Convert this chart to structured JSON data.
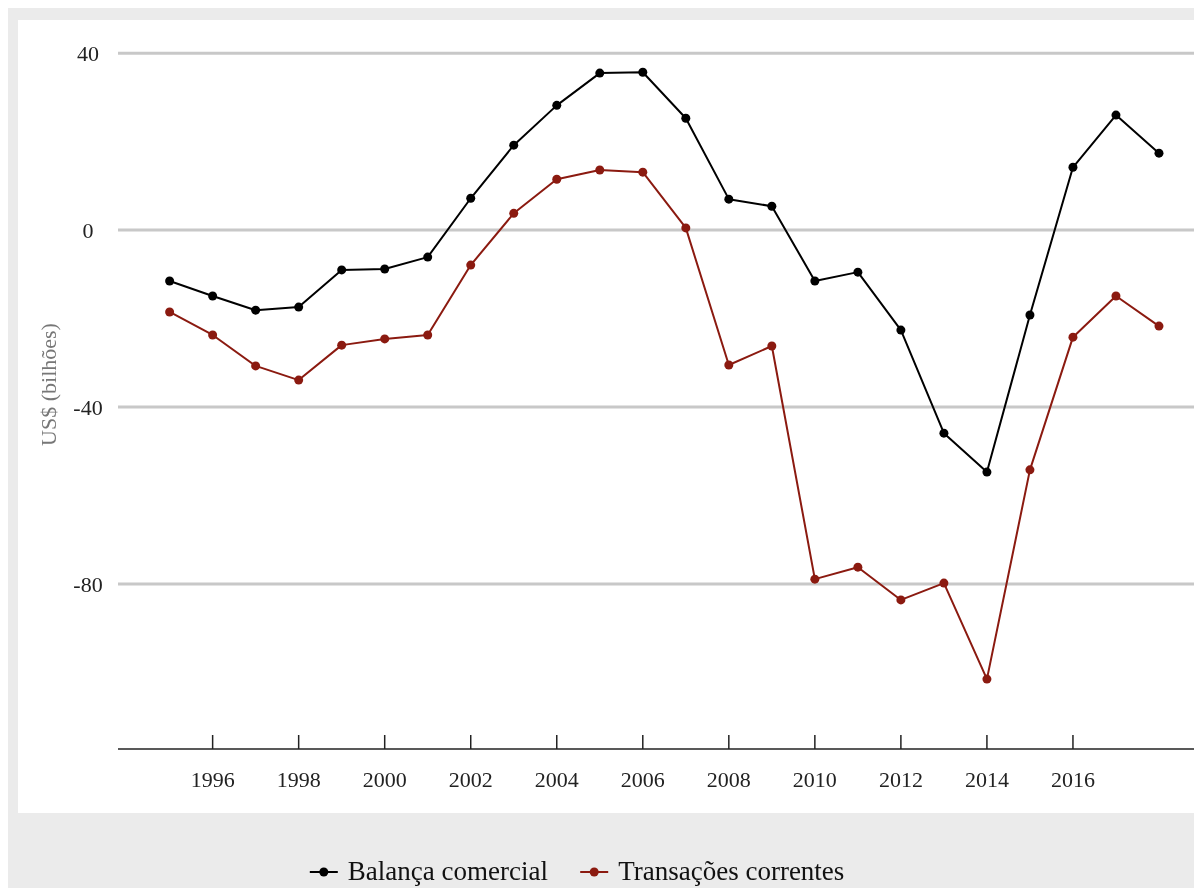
{
  "chart_data": {
    "type": "line",
    "ylabel": "US$ (bilhões)",
    "x": [
      1995,
      1996,
      1997,
      1998,
      1999,
      2000,
      2001,
      2002,
      2003,
      2004,
      2005,
      2006,
      2007,
      2008,
      2009,
      2010,
      2011,
      2012,
      2013,
      2014,
      2015,
      2016,
      2017,
      2018
    ],
    "series": [
      {
        "name": "Balança comercial",
        "color": "#000000",
        "values": [
          -11.5,
          -14.9,
          -18.1,
          -17.4,
          -9.0,
          -8.8,
          -6.1,
          7.2,
          19.2,
          28.2,
          35.5,
          35.7,
          25.3,
          7.0,
          5.4,
          -11.5,
          -9.5,
          -22.6,
          -45.9,
          -54.7,
          -19.2,
          14.2,
          26.0,
          17.4
        ]
      },
      {
        "name": "Transações correntes",
        "color": "#8b1a10",
        "values": [
          -18.5,
          -23.7,
          -30.7,
          -33.9,
          -26.0,
          -24.6,
          -23.7,
          -7.9,
          3.8,
          11.5,
          13.6,
          13.1,
          0.5,
          -30.5,
          -26.2,
          -78.9,
          -76.2,
          -83.6,
          -79.8,
          -101.5,
          -54.2,
          -24.2,
          -14.9,
          -21.7
        ]
      }
    ],
    "xlim": [
      1993.8,
      2019
    ],
    "xticks": [
      1996,
      1998,
      2000,
      2002,
      2004,
      2006,
      2008,
      2010,
      2012,
      2014,
      2016
    ],
    "ylim": [
      -117.3,
      47.5
    ],
    "yticks": [
      -80,
      -40,
      0,
      40
    ],
    "grid": "y",
    "legend": "bottom",
    "marker": "circle",
    "line_style": "solid"
  }
}
